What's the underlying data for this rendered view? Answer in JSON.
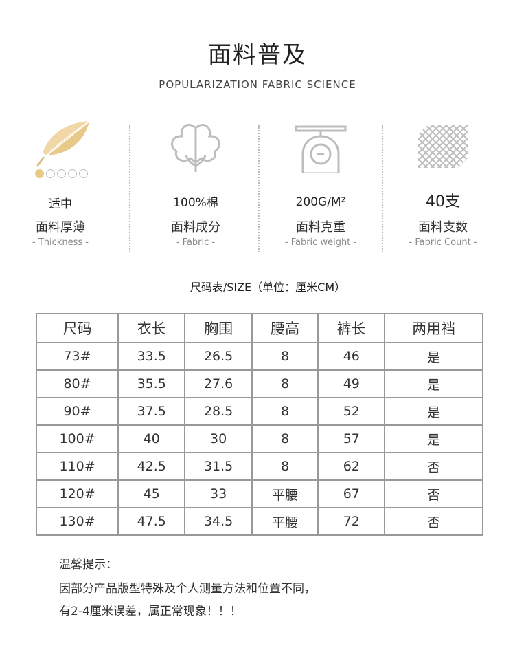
{
  "header": {
    "title": "面料普及",
    "subtitle": "POPULARIZATION FABRIC SCIENCE"
  },
  "features": [
    {
      "value": "适中",
      "name": "面料厚薄",
      "en": "- Thickness -",
      "icon": "feather-icon",
      "rating": 1,
      "rating_max": 5
    },
    {
      "value": "100%棉",
      "name": "面料成分",
      "en": "- Fabric -",
      "icon": "cotton-icon"
    },
    {
      "value": "200G/M²",
      "name": "面料克重",
      "en": "- Fabric weight -",
      "icon": "scale-icon"
    },
    {
      "value": "40支",
      "name": "面料支数",
      "en": "- Fabric Count -",
      "icon": "weave-icon"
    }
  ],
  "size_chart": {
    "title": "尺码表/SIZE（单位：厘米CM）",
    "headers": [
      "尺码",
      "衣长",
      "胸围",
      "腰高",
      "裤长",
      "两用裆"
    ],
    "rows": [
      [
        "73#",
        "33.5",
        "26.5",
        "8",
        "46",
        "是"
      ],
      [
        "80#",
        "35.5",
        "27.6",
        "8",
        "49",
        "是"
      ],
      [
        "90#",
        "37.5",
        "28.5",
        "8",
        "52",
        "是"
      ],
      [
        "100#",
        "40",
        "30",
        "8",
        "57",
        "是"
      ],
      [
        "110#",
        "42.5",
        "31.5",
        "8",
        "62",
        "否"
      ],
      [
        "120#",
        "45",
        "33",
        "平腰",
        "67",
        "否"
      ],
      [
        "130#",
        "47.5",
        "34.5",
        "平腰",
        "72",
        "否"
      ]
    ]
  },
  "notes": {
    "line1": "温馨提示：",
    "line2": "因部分产品版型特殊及个人测量方法和位置不同，",
    "line3": "有2-4厘米误差，属正常现象！！！"
  },
  "colors": {
    "accent": "#e8c98a",
    "border": "#999999",
    "icon": "#c8c8c8"
  }
}
